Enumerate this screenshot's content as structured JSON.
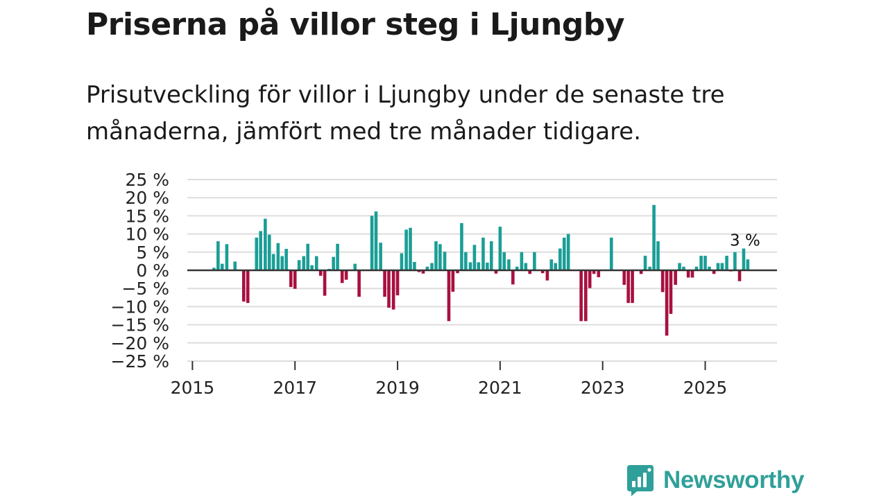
{
  "title": "Priserna på villor steg i Ljungby",
  "subtitle": "Prisutveckling för villor i Ljungby under de senaste tre månaderna, jämfört med tre månader tidigare.",
  "brand": {
    "name": "Newsworthy",
    "logo_icon": "bar-chart-speech-bubble-icon"
  },
  "colors": {
    "positive": "#1a9e96",
    "negative": "#a8103f",
    "grid": "#dddddd",
    "zero_line": "#333333",
    "brand": "#2fa099"
  },
  "chart_data": {
    "type": "bar",
    "x_unit": "year",
    "ylim": [
      -25,
      25
    ],
    "xlim": [
      2014.9,
      2026.4
    ],
    "yticks": [
      25,
      20,
      15,
      10,
      5,
      0,
      -5,
      -10,
      -15,
      -20,
      -25
    ],
    "ytick_labels": [
      "25 %",
      "20 %",
      "15 %",
      "10 %",
      "5 %",
      "0 %",
      "−5 %",
      "−10 %",
      "−15 %",
      "−20 %",
      "−25 %"
    ],
    "xticks": [
      2015,
      2017,
      2019,
      2021,
      2023,
      2025
    ],
    "xtick_labels": [
      "2015",
      "2017",
      "2019",
      "2021",
      "2023",
      "2025"
    ],
    "grid": true,
    "annotation": {
      "text": "3 %",
      "x": 2025.75,
      "y": 6
    },
    "x": [
      2015.42,
      2015.5,
      2015.58,
      2015.67,
      2015.75,
      2015.83,
      2015.92,
      2016.0,
      2016.08,
      2016.17,
      2016.25,
      2016.33,
      2016.42,
      2016.5,
      2016.58,
      2016.67,
      2016.75,
      2016.83,
      2016.92,
      2017.0,
      2017.08,
      2017.17,
      2017.25,
      2017.33,
      2017.42,
      2017.5,
      2017.58,
      2017.67,
      2017.75,
      2017.83,
      2017.92,
      2018.0,
      2018.08,
      2018.17,
      2018.25,
      2018.33,
      2018.42,
      2018.5,
      2018.58,
      2018.67,
      2018.75,
      2018.83,
      2018.92,
      2019.0,
      2019.08,
      2019.17,
      2019.25,
      2019.33,
      2019.42,
      2019.5,
      2019.58,
      2019.67,
      2019.75,
      2019.83,
      2019.92,
      2020.0,
      2020.08,
      2020.17,
      2020.25,
      2020.33,
      2020.42,
      2020.5,
      2020.58,
      2020.67,
      2020.75,
      2020.83,
      2020.92,
      2021.0,
      2021.08,
      2021.17,
      2021.25,
      2021.33,
      2021.42,
      2021.5,
      2021.58,
      2021.67,
      2021.75,
      2021.83,
      2021.92,
      2022.0,
      2022.08,
      2022.17,
      2022.25,
      2022.33,
      2022.42,
      2022.5,
      2022.58,
      2022.67,
      2022.75,
      2022.83,
      2022.92,
      2023.0,
      2023.08,
      2023.17,
      2023.25,
      2023.33,
      2023.42,
      2023.5,
      2023.58,
      2023.67,
      2023.75,
      2023.83,
      2023.92,
      2024.0,
      2024.08,
      2024.17,
      2024.25,
      2024.33,
      2024.42,
      2024.5,
      2024.58,
      2024.67,
      2024.75,
      2024.83,
      2024.92,
      2025.0,
      2025.08,
      2025.17,
      2025.25,
      2025.33,
      2025.42,
      2025.5,
      2025.58,
      2025.67,
      2025.75,
      2025.83
    ],
    "values": [
      0.7,
      8,
      1.8,
      7.2,
      0,
      2.4,
      0,
      -8.6,
      -9,
      0,
      9,
      10.8,
      14.2,
      9.8,
      4.5,
      7.5,
      3.9,
      5.9,
      -4.6,
      -5.1,
      2.8,
      3.9,
      7.3,
      1.4,
      3.9,
      -1.5,
      -7,
      0.4,
      3.7,
      7.3,
      -3.5,
      -2.6,
      0,
      1.8,
      -7.3,
      0,
      0,
      15,
      16.2,
      7.6,
      -7.3,
      -10.3,
      -10.8,
      -6.9,
      4.7,
      11.2,
      11.7,
      2.3,
      -0.5,
      -0.9,
      1,
      2,
      8,
      7.2,
      5.1,
      -14,
      -5.9,
      -0.8,
      13,
      5,
      2.2,
      7,
      2.2,
      9,
      2.1,
      8,
      -0.9,
      12,
      5,
      3,
      -3.9,
      1,
      5,
      2,
      -1,
      5,
      0,
      -0.8,
      -2.8,
      3,
      2,
      6,
      9,
      10,
      0,
      0,
      -14,
      -14,
      -4.9,
      -1,
      -1.9,
      0,
      0,
      9,
      0,
      0,
      -4,
      -9,
      -9,
      0,
      -1,
      4,
      1,
      18,
      8,
      -6,
      -18,
      -12,
      -4,
      2,
      1,
      -2,
      -2,
      1,
      4,
      4,
      1,
      -1,
      2,
      2,
      4,
      -0.3,
      5,
      -3,
      6,
      3
    ]
  }
}
